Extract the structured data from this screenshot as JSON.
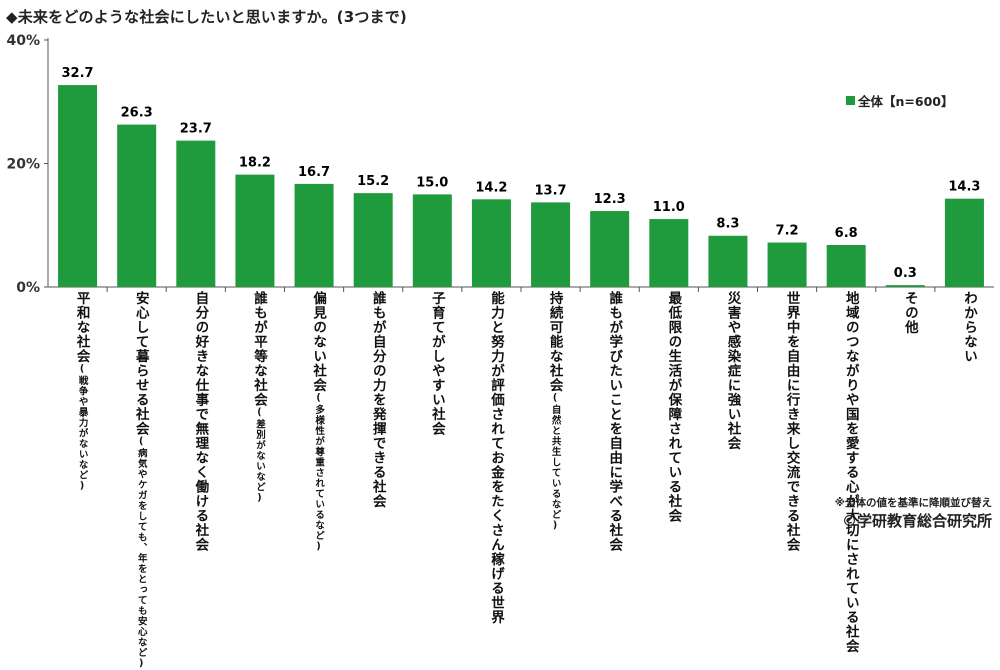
{
  "title": "◆未来をどのような社会にしたいと思いますか。(3つまで)",
  "legend": {
    "label": "全体【n=600】",
    "color": "#1f9a3c"
  },
  "note": "※全体の値を基準に降順並び替え",
  "credit": "©学研教育総合研究所",
  "chart_data": {
    "type": "bar",
    "ylim": [
      0,
      40
    ],
    "yticks": [
      "0%",
      "20%",
      "40%"
    ],
    "grid": false,
    "legend_position": "top-right",
    "categories": [
      {
        "main": "平和な社会",
        "sub": "(戦争や暴力がないなど)"
      },
      {
        "main": "安心して暮らせる社会",
        "sub": "(病気やケガをしても、年をとっても安心など)"
      },
      {
        "main": "自分の好きな仕事で無理なく働ける社会",
        "sub": ""
      },
      {
        "main": "誰もが平等な社会",
        "sub": "(差別がないなど)"
      },
      {
        "main": "偏見のない社会",
        "sub": "(多様性が尊重されているなど)"
      },
      {
        "main": "誰もが自分の力を発揮できる社会",
        "sub": ""
      },
      {
        "main": "子育てがしやすい社会",
        "sub": ""
      },
      {
        "main": "能力と努力が評価されてお金をたくさん稼げる世界",
        "sub": ""
      },
      {
        "main": "持続可能な社会",
        "sub": "(自然と共生しているなど)"
      },
      {
        "main": "誰もが学びたいことを自由に学べる社会",
        "sub": ""
      },
      {
        "main": "最低限の生活が保障されている社会",
        "sub": ""
      },
      {
        "main": "災害や感染症に強い社会",
        "sub": ""
      },
      {
        "main": "世界中を自由に行き来し交流できる社会",
        "sub": ""
      },
      {
        "main": "地域のつながりや国を愛する心が大切にされている社会",
        "sub": ""
      },
      {
        "main": "その他",
        "sub": ""
      },
      {
        "main": "わからない",
        "sub": ""
      }
    ],
    "series": [
      {
        "values": [
          32.7,
          26.3,
          23.7,
          18.2,
          16.7,
          15.2,
          15.0,
          14.2,
          13.7,
          12.3,
          11.0,
          8.3,
          7.2,
          6.8,
          0.3,
          14.3
        ],
        "labels": [
          "32.7",
          "26.3",
          "23.7",
          "18.2",
          "16.7",
          "15.2",
          "15.0",
          "14.2",
          "13.7",
          "12.3",
          "11.0",
          "8.3",
          "7.2",
          "6.8",
          "0.3",
          "14.3"
        ]
      }
    ]
  }
}
